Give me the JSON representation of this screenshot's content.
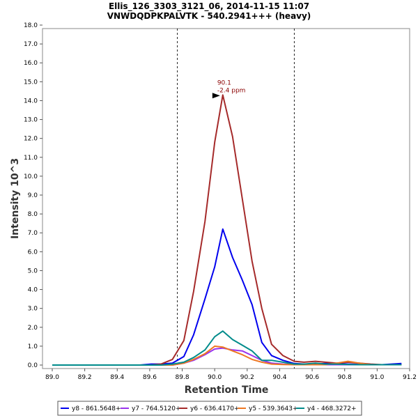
{
  "chart_data": {
    "type": "line",
    "title": "Ellis_126_3303_3121_06, 2014-11-15 11:07",
    "subtitle": "VNWDQDPKPALVTK - 540.2941+++ (heavy)",
    "xlabel": "Retention Time",
    "ylabel": "Intensity 10^3",
    "xlim": [
      88.94,
      91.2
    ],
    "ylim": [
      0,
      18.0
    ],
    "x_ticks": [
      "89.0",
      "89.2",
      "89.4",
      "89.6",
      "89.8",
      "90.0",
      "90.2",
      "90.4",
      "90.6",
      "90.8",
      "91.0",
      "91.2"
    ],
    "y_ticks": [
      "0.0",
      "1.0",
      "2.0",
      "3.0",
      "4.0",
      "5.0",
      "6.0",
      "7.0",
      "8.0",
      "9.0",
      "10.0",
      "11.0",
      "12.0",
      "13.0",
      "14.0",
      "15.0",
      "16.0",
      "17.0",
      "18.0"
    ],
    "x": [
      89.0,
      89.07,
      89.13,
      89.2,
      89.26,
      89.33,
      89.4,
      89.47,
      89.54,
      89.61,
      89.67,
      89.74,
      89.81,
      89.87,
      89.94,
      90.0,
      90.05,
      90.11,
      90.17,
      90.23,
      90.29,
      90.35,
      90.42,
      90.49,
      90.55,
      90.62,
      90.68,
      90.75,
      90.82,
      90.89,
      90.96,
      91.03,
      91.09,
      91.15
    ],
    "series": [
      {
        "name": "y8 - 861.5648+",
        "color": "#0000ee",
        "values": [
          0,
          0,
          0,
          0,
          0,
          0,
          0,
          0,
          0,
          0.05,
          0.05,
          0.1,
          0.45,
          1.6,
          3.5,
          5.2,
          7.2,
          5.7,
          4.5,
          3.2,
          1.2,
          0.5,
          0.25,
          0.08,
          0.05,
          0.05,
          0.08,
          0.08,
          0.05,
          0.03,
          0.02,
          0.02,
          0.05,
          0.08
        ]
      },
      {
        "name": "y7 - 764.5120+",
        "color": "#9933ee",
        "values": [
          0,
          0,
          0,
          0,
          0,
          0,
          0,
          0,
          0,
          0,
          0,
          0,
          0.1,
          0.25,
          0.55,
          0.85,
          0.9,
          0.8,
          0.75,
          0.5,
          0.25,
          0.1,
          0.05,
          0.03,
          0.02,
          0.02,
          0.02,
          0.02,
          0.02,
          0.02,
          0.02,
          0.02,
          0.02,
          0.02
        ]
      },
      {
        "name": "y6 - 636.4170+",
        "color": "#a52a2a",
        "values": [
          0,
          0,
          0,
          0,
          0,
          0,
          0,
          0,
          0,
          0,
          0.05,
          0.3,
          1.3,
          3.9,
          7.6,
          11.8,
          14.3,
          12.1,
          8.8,
          5.5,
          3.0,
          1.1,
          0.5,
          0.2,
          0.15,
          0.2,
          0.15,
          0.1,
          0.15,
          0.1,
          0.05,
          0.02,
          0.02,
          0.02
        ]
      },
      {
        "name": "y5 - 539.3643+",
        "color": "#ee7722",
        "values": [
          0,
          0,
          0,
          0,
          0,
          0,
          0,
          0,
          0,
          0,
          0,
          0,
          0.1,
          0.3,
          0.6,
          1.0,
          0.95,
          0.75,
          0.55,
          0.3,
          0.15,
          0.05,
          0.03,
          0.02,
          0.02,
          0.02,
          0.02,
          0.1,
          0.2,
          0.1,
          0.02,
          0.02,
          0.02,
          0.02
        ]
      },
      {
        "name": "y4 - 468.3272+",
        "color": "#008b8b",
        "values": [
          0,
          0,
          0,
          0,
          0,
          0,
          0,
          0,
          0,
          0,
          0,
          0.05,
          0.15,
          0.4,
          0.8,
          1.5,
          1.8,
          1.35,
          1.05,
          0.75,
          0.25,
          0.25,
          0.15,
          0.05,
          0.05,
          0.1,
          0.05,
          0.05,
          0.03,
          0.02,
          0.02,
          0.02,
          0.02,
          0.02
        ]
      }
    ],
    "vertical_lines": [
      89.77,
      90.49
    ],
    "annotation": {
      "x": 90.05,
      "y": 14.3,
      "label1": "90.1",
      "label2": "-2.4 ppm",
      "color": "#8b0000"
    },
    "legend_position": "bottom"
  }
}
